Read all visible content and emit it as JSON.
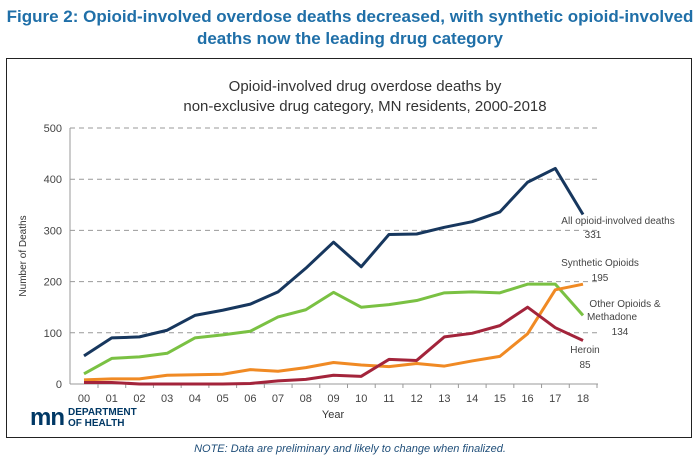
{
  "figure_title": "Figure 2: Opioid-involved overdose deaths decreased, with synthetic opioid-involved deaths now the leading drug category",
  "note": "NOTE: Data are preliminary and likely to change when finalized.",
  "logo": {
    "mark": "mn",
    "line1": "DEPARTMENT",
    "line2": "OF HEALTH"
  },
  "chart_data": {
    "type": "line",
    "title_line1": "Opioid-involved drug overdose deaths by",
    "title_line2": "non-exclusive drug category, MN residents, 2000-2018",
    "xlabel": "Year",
    "ylabel": "Number of Deaths",
    "ylim": [
      0,
      500
    ],
    "yticks": [
      0,
      100,
      200,
      300,
      400,
      500
    ],
    "grid": "horizontal dashed",
    "categories": [
      "00",
      "01",
      "02",
      "03",
      "04",
      "05",
      "06",
      "07",
      "08",
      "09",
      "10",
      "11",
      "12",
      "13",
      "14",
      "15",
      "16",
      "17",
      "18"
    ],
    "series": [
      {
        "name": "All opioid-involved deaths",
        "end_label": "331",
        "color": "#17375e",
        "values": [
          55,
          90,
          92,
          105,
          134,
          144,
          156,
          180,
          226,
          277,
          229,
          292,
          293,
          306,
          317,
          336,
          394,
          421,
          331
        ]
      },
      {
        "name": "Other Opioids & Methadone",
        "end_label": "134",
        "color": "#7ac143",
        "values": [
          20,
          50,
          53,
          60,
          90,
          96,
          103,
          131,
          145,
          179,
          150,
          155,
          163,
          178,
          180,
          178,
          195,
          195,
          134
        ]
      },
      {
        "name": "Synthetic Opioids",
        "end_label": "195",
        "color": "#f08a24",
        "values": [
          8,
          10,
          10,
          17,
          18,
          19,
          28,
          25,
          32,
          42,
          37,
          34,
          40,
          35,
          45,
          54,
          98,
          184,
          195
        ]
      },
      {
        "name": "Heroin",
        "end_label": "85",
        "color": "#a3243b",
        "values": [
          3,
          3,
          0,
          0,
          0,
          0,
          1,
          6,
          9,
          17,
          15,
          48,
          46,
          92,
          99,
          114,
          150,
          110,
          85
        ]
      }
    ]
  }
}
